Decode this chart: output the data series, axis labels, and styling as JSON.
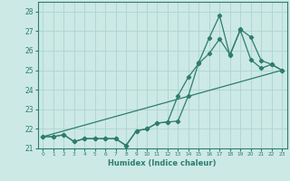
{
  "xlabel": "Humidex (Indice chaleur)",
  "xlim": [
    -0.5,
    23.5
  ],
  "ylim": [
    21.0,
    28.5
  ],
  "yticks": [
    21,
    22,
    23,
    24,
    25,
    26,
    27,
    28
  ],
  "xticks": [
    0,
    1,
    2,
    3,
    4,
    5,
    6,
    7,
    8,
    9,
    10,
    11,
    12,
    13,
    14,
    15,
    16,
    17,
    18,
    19,
    20,
    21,
    22,
    23
  ],
  "bg_color": "#cce9e5",
  "grid_color": "#aed4cf",
  "line_color": "#2e7d6e",
  "line1_x": [
    0,
    1,
    2,
    3,
    4,
    5,
    6,
    7,
    8,
    9,
    10,
    11,
    12,
    13,
    14,
    15,
    16,
    17,
    18,
    19,
    20,
    21,
    22,
    23
  ],
  "line1_y": [
    21.6,
    21.6,
    21.7,
    21.35,
    21.5,
    21.5,
    21.5,
    21.5,
    21.15,
    21.9,
    22.0,
    22.3,
    22.35,
    22.4,
    23.7,
    25.4,
    26.65,
    27.8,
    25.75,
    27.1,
    26.7,
    25.5,
    25.3,
    25.0
  ],
  "line2_x": [
    0,
    1,
    2,
    3,
    4,
    5,
    6,
    7,
    8,
    9,
    10,
    11,
    12,
    13,
    14,
    15,
    16,
    17,
    18,
    19,
    20,
    21,
    22,
    23
  ],
  "line2_y": [
    21.6,
    21.6,
    21.7,
    21.35,
    21.5,
    21.5,
    21.5,
    21.5,
    21.15,
    21.9,
    22.0,
    22.3,
    22.35,
    23.7,
    24.65,
    25.35,
    25.85,
    26.6,
    25.8,
    27.05,
    25.55,
    25.1,
    25.3,
    25.0
  ],
  "line3_x": [
    0,
    23
  ],
  "line3_y": [
    21.6,
    25.0
  ]
}
